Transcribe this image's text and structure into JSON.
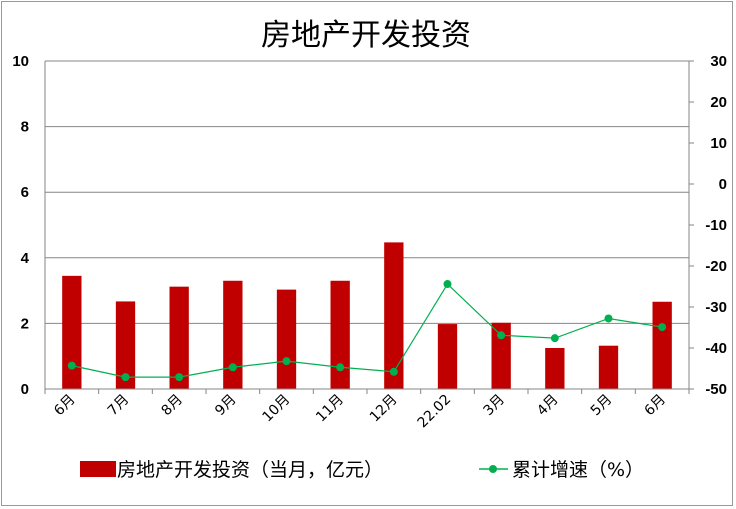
{
  "chart_data": {
    "type": "bar+line",
    "title": "房地产开发投资",
    "categories": [
      "6月",
      "7月",
      "8月",
      "9月",
      "10月",
      "11月",
      "12月",
      "22.02",
      "3月",
      "4月",
      "5月",
      "6月"
    ],
    "series": [
      {
        "name": "房地产开发投资（当月，亿元）",
        "type": "bar",
        "axis": "left",
        "color": "#c00000",
        "values": [
          3.45,
          2.67,
          3.12,
          3.3,
          3.03,
          3.3,
          4.47,
          1.98,
          2.02,
          1.25,
          1.32,
          2.66
        ]
      },
      {
        "name": "累计增速（%）",
        "type": "line",
        "axis": "right",
        "color": "#00b050",
        "values": [
          -44.3,
          -47.1,
          -47.1,
          -44.7,
          -43.2,
          -44.7,
          -45.8,
          -24.4,
          -36.9,
          -37.6,
          -32.8,
          -34.9
        ]
      }
    ],
    "ylim_left": [
      0,
      10
    ],
    "yticks_left": [
      "0",
      "2",
      "4",
      "6",
      "8",
      "10"
    ],
    "ylim_right": [
      -50,
      30
    ],
    "yticks_right": [
      "-50",
      "-40",
      "-30",
      "-20",
      "-10",
      "0",
      "10",
      "20",
      "30"
    ],
    "grid": true,
    "legend_position": "bottom"
  }
}
